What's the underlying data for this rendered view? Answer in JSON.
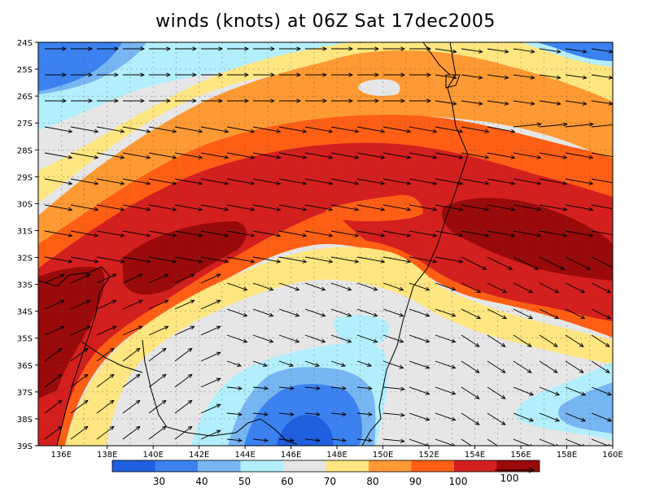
{
  "title": "winds (knots) at 06Z Sat 17dec2005",
  "map": {
    "lat_labels": [
      "24S",
      "25S",
      "26S",
      "27S",
      "28S",
      "29S",
      "30S",
      "31S",
      "32S",
      "33S",
      "34S",
      "35S",
      "36S",
      "37S",
      "38S",
      "39S"
    ],
    "lon_labels": [
      "136E",
      "138E",
      "140E",
      "142E",
      "144E",
      "146E",
      "148E",
      "150E",
      "152E",
      "154E",
      "156E",
      "158E",
      "160E"
    ],
    "lat_range": [
      -39,
      -24
    ],
    "lon_range": [
      135,
      160
    ],
    "grid": "dashed",
    "vector_field": "wind",
    "background_level": "60-70"
  },
  "legend": {
    "colors": [
      "#1f5fe0",
      "#3b82f0",
      "#77b6f2",
      "#b3eefc",
      "#e6e6e6",
      "#ffe680",
      "#ff9933",
      "#ff5f15",
      "#d41f1f",
      "#9a0a0a"
    ],
    "tick_labels": [
      "30",
      "40",
      "50",
      "60",
      "70",
      "80",
      "90",
      "100"
    ],
    "reference_vector_label": "100"
  },
  "palette": {
    "c40": "#3b82f0",
    "c50": "#77b6f2",
    "c60": "#b3eefc",
    "c70": "#e6e6e6",
    "c80": "#ffe680",
    "c90": "#ff9933",
    "c100": "#ff5f15",
    "c110": "#d41f1f",
    "c120": "#9a0a0a",
    "c30": "#1f5fe0"
  }
}
